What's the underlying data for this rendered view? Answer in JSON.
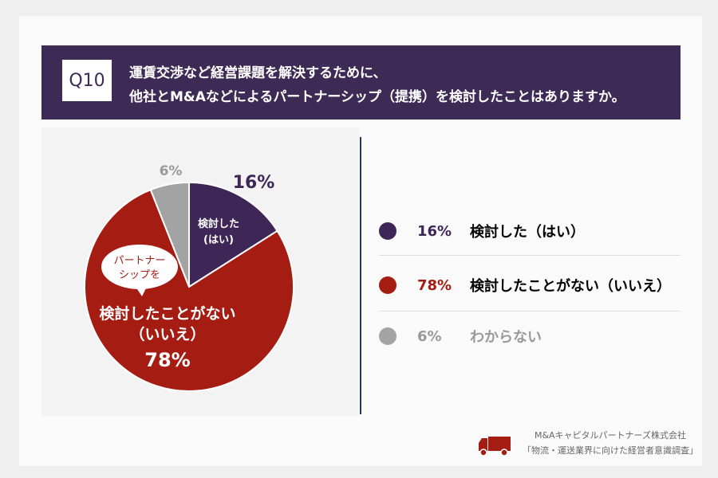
{
  "header": {
    "q": "Q10",
    "line1": "運賃交渉など経営課題を解決するために、",
    "line2": "他社とM&Aなどによるパートナーシップ（提携）を検討したことはありますか。"
  },
  "chart_data": {
    "type": "pie",
    "categories": [
      "検討した（はい）",
      "検討したことがない（いいえ）",
      "わからない"
    ],
    "values": [
      16,
      78,
      6
    ],
    "colors": [
      "#3e2756",
      "#a51c12",
      "#a3a3a3"
    ],
    "labels": {
      "yes_pct": "16%",
      "yes_inner": [
        "検討した",
        "(はい)"
      ],
      "no_bubble": [
        "パートナー",
        "シップを"
      ],
      "no_inner": [
        "検討したことがない",
        "（いいえ）",
        "78%"
      ],
      "unknown_pct": "6%"
    }
  },
  "legend": [
    {
      "pct": "16%",
      "label": "検討した（はい）",
      "color": "#3e2756",
      "text_color": "#222"
    },
    {
      "pct": "78%",
      "label": "検討したことがない（いいえ）",
      "color": "#a51c12",
      "text_color": "#222"
    },
    {
      "pct": "6%",
      "label": "わからない",
      "color": "#a3a3a3",
      "text_color": "#999"
    }
  ],
  "credit": {
    "company": "M&Aキャピタルパートナーズ株式会社",
    "survey": "「物流・運送業界に向けた経営者意識調査」",
    "icon": "truck-icon"
  }
}
